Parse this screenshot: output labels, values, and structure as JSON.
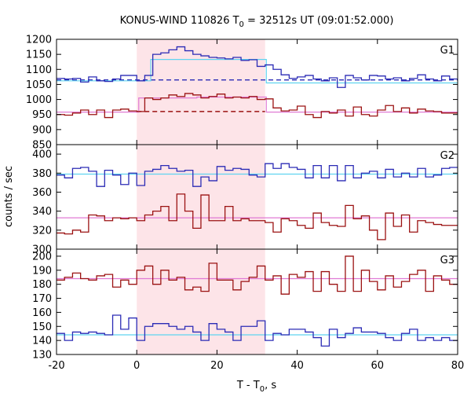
{
  "figure": {
    "title": "KONUS-WIND 110826 T",
    "title_sub": "0",
    "title_rest": " = 32512s UT (09:01:52.000)",
    "xlabel": "T - T",
    "xlabel_sub": "0",
    "xlabel_rest": ", s",
    "ylabel": "counts / sec",
    "colors": {
      "blue_series": "#2b2bb5",
      "red_series": "#9b1212",
      "blue_fit": "#5fd3f0",
      "red_fit": "#e07ad4",
      "shade": "#fde4e8",
      "frame": "#000000"
    }
  },
  "chart_data": [
    {
      "type": "line",
      "panel": "G1",
      "label": "G1",
      "xlim": [
        -20,
        80
      ],
      "ylim": [
        850,
        1200
      ],
      "x_ticks": [
        -20,
        0,
        20,
        40,
        60,
        80
      ],
      "y_ticks": [
        850,
        900,
        950,
        1000,
        1050,
        1100,
        1150,
        1200
      ],
      "shaded_interval": [
        0,
        32
      ],
      "bin_edges": [
        -20,
        -18,
        -16,
        -14,
        -12,
        -10,
        -8,
        -6,
        -4,
        -2,
        0,
        2,
        4,
        6,
        8,
        10,
        12,
        14,
        16,
        18,
        20,
        22,
        24,
        26,
        28,
        30,
        32,
        34,
        36,
        38,
        40,
        42,
        44,
        46,
        48,
        50,
        52,
        54,
        56,
        58,
        60,
        62,
        64,
        66,
        68,
        70,
        72,
        74,
        76,
        78,
        80
      ],
      "series": [
        {
          "color": "blue",
          "values": [
            1070,
            1068,
            1070,
            1058,
            1075,
            1062,
            1060,
            1068,
            1080,
            1080,
            1062,
            1080,
            1150,
            1155,
            1165,
            1175,
            1162,
            1150,
            1145,
            1140,
            1138,
            1135,
            1140,
            1130,
            1132,
            1110,
            1115,
            1100,
            1082,
            1070,
            1075,
            1080,
            1068,
            1062,
            1072,
            1040,
            1080,
            1072,
            1065,
            1080,
            1078,
            1068,
            1072,
            1062,
            1070,
            1082,
            1068,
            1062,
            1078,
            1068
          ]
        },
        {
          "color": "red",
          "values": [
            950,
            948,
            955,
            965,
            950,
            965,
            940,
            965,
            968,
            962,
            960,
            1005,
            1000,
            1005,
            1015,
            1010,
            1020,
            1015,
            1005,
            1010,
            1018,
            1005,
            1008,
            1005,
            1010,
            1000,
            1002,
            972,
            962,
            965,
            978,
            950,
            940,
            960,
            955,
            965,
            945,
            975,
            950,
            945,
            965,
            980,
            960,
            972,
            955,
            968,
            962,
            960,
            955,
            955
          ]
        }
      ],
      "fit_lines": [
        {
          "color": "blue_fit",
          "pre_level": 1062,
          "burst_segments": [
            {
              "x": [
                3.5,
                32.3
              ],
              "level": 1133
            }
          ],
          "post_level": 1055
        },
        {
          "color": "red_fit",
          "pre_level": 958,
          "burst_segments": [
            {
              "x": [
                0.5,
                15
              ],
              "level": 1005
            },
            {
              "x": [
                15,
                32.3
              ],
              "level": 1008
            }
          ],
          "post_level": 958
        }
      ],
      "background_levels": [
        {
          "color": "blue",
          "level": 1065,
          "x": [
            -20,
            80
          ]
        },
        {
          "color": "red",
          "level": 960,
          "x": [
            0,
            32
          ]
        }
      ]
    },
    {
      "type": "line",
      "panel": "G2",
      "label": "G2",
      "xlim": [
        -20,
        80
      ],
      "ylim": [
        300,
        410
      ],
      "x_ticks": [
        -20,
        0,
        20,
        40,
        60,
        80
      ],
      "y_ticks": [
        300,
        320,
        340,
        360,
        380,
        400
      ],
      "shaded_interval": [
        0,
        32
      ],
      "bin_edges": [
        -20,
        -18,
        -16,
        -14,
        -12,
        -10,
        -8,
        -6,
        -4,
        -2,
        0,
        2,
        4,
        6,
        8,
        10,
        12,
        14,
        16,
        18,
        20,
        22,
        24,
        26,
        28,
        30,
        32,
        34,
        36,
        38,
        40,
        42,
        44,
        46,
        48,
        50,
        52,
        54,
        56,
        58,
        60,
        62,
        64,
        66,
        68,
        70,
        72,
        74,
        76,
        78,
        80
      ],
      "series": [
        {
          "color": "blue",
          "values": [
            378,
            375,
            385,
            386,
            382,
            366,
            383,
            378,
            368,
            380,
            367,
            382,
            384,
            388,
            385,
            382,
            383,
            366,
            376,
            372,
            387,
            383,
            385,
            384,
            378,
            376,
            390,
            385,
            390,
            386,
            384,
            375,
            388,
            375,
            388,
            372,
            388,
            375,
            380,
            382,
            375,
            384,
            376,
            380,
            376,
            385,
            376,
            378,
            385,
            386
          ]
        },
        {
          "color": "red",
          "values": [
            317,
            316,
            320,
            318,
            336,
            335,
            330,
            333,
            332,
            333,
            330,
            336,
            340,
            345,
            330,
            358,
            340,
            322,
            357,
            330,
            330,
            345,
            330,
            332,
            330,
            330,
            328,
            318,
            332,
            330,
            325,
            322,
            338,
            328,
            325,
            324,
            346,
            332,
            335,
            320,
            310,
            338,
            324,
            336,
            318,
            330,
            328,
            326,
            325,
            325
          ]
        }
      ],
      "fit_lines": [
        {
          "color": "blue_fit",
          "level": 379
        },
        {
          "color": "red_fit",
          "level": 333
        }
      ]
    },
    {
      "type": "line",
      "panel": "G3",
      "label": "G3",
      "xlim": [
        -20,
        80
      ],
      "ylim": [
        130,
        205
      ],
      "x_ticks": [
        -20,
        0,
        20,
        40,
        60,
        80
      ],
      "y_ticks": [
        130,
        140,
        150,
        160,
        170,
        180,
        190,
        200
      ],
      "shaded_interval": [
        0,
        32
      ],
      "bin_edges": [
        -20,
        -18,
        -16,
        -14,
        -12,
        -10,
        -8,
        -6,
        -4,
        -2,
        0,
        2,
        4,
        6,
        8,
        10,
        12,
        14,
        16,
        18,
        20,
        22,
        24,
        26,
        28,
        30,
        32,
        34,
        36,
        38,
        40,
        42,
        44,
        46,
        48,
        50,
        52,
        54,
        56,
        58,
        60,
        62,
        64,
        66,
        68,
        70,
        72,
        74,
        76,
        78,
        80
      ],
      "series": [
        {
          "color": "blue",
          "values": [
            145,
            140,
            146,
            145,
            146,
            145,
            144,
            158,
            148,
            156,
            140,
            150,
            152,
            152,
            150,
            148,
            150,
            146,
            140,
            152,
            148,
            146,
            140,
            150,
            150,
            154,
            140,
            145,
            144,
            148,
            148,
            146,
            142,
            136,
            148,
            142,
            145,
            149,
            146,
            146,
            145,
            142,
            140,
            145,
            148,
            140,
            142,
            140,
            142,
            140
          ]
        },
        {
          "color": "red",
          "values": [
            183,
            185,
            188,
            184,
            183,
            186,
            187,
            178,
            183,
            180,
            190,
            193,
            180,
            190,
            183,
            185,
            176,
            178,
            175,
            195,
            183,
            183,
            176,
            182,
            185,
            193,
            183,
            186,
            173,
            187,
            185,
            189,
            175,
            189,
            180,
            175,
            200,
            175,
            190,
            182,
            176,
            186,
            178,
            182,
            187,
            190,
            175,
            186,
            183,
            180
          ]
        }
      ],
      "fit_lines": [
        {
          "color": "blue_fit",
          "level": 144
        },
        {
          "color": "red_fit",
          "level": 184
        }
      ]
    }
  ]
}
